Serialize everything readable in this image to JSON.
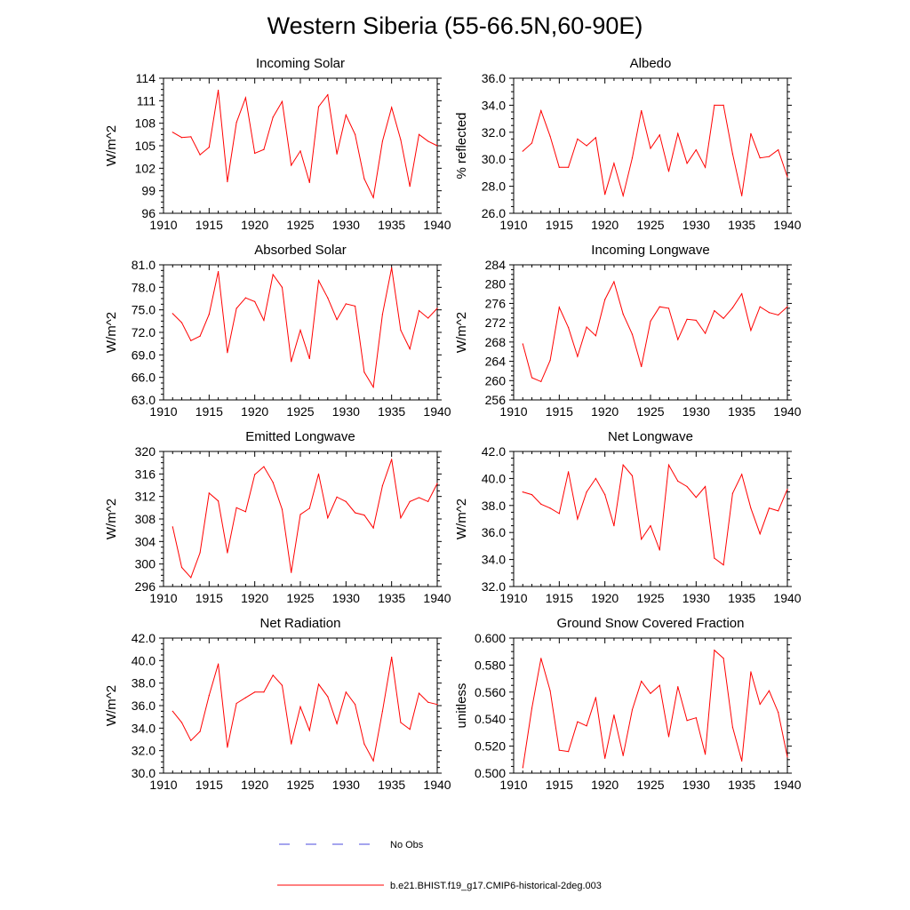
{
  "figure": {
    "title": "Western Siberia (55-66.5N,60-90E)"
  },
  "colors": {
    "model": "#ff0000",
    "obs": "#4a4adc",
    "axis": "#000000"
  },
  "legend": {
    "obs_label": "No Obs",
    "model_label": "b.e21.BHIST.f19_g17.CMIP6-historical-2deg.003"
  },
  "chart_data": [
    {
      "type": "line",
      "title": "Incoming Solar",
      "xlabel": "",
      "ylabel": "W/m^2",
      "xlim": [
        1910,
        1940
      ],
      "ylim": [
        96,
        114
      ],
      "xticks": [
        "1910",
        "1915",
        "1920",
        "1925",
        "1930",
        "1935",
        "1940"
      ],
      "yticks": [
        "96",
        "99",
        "102",
        "105",
        "108",
        "111",
        "114"
      ],
      "series": [
        {
          "name": "b.e21.BHIST.f19_g17.CMIP6-historical-2deg.003",
          "x": [
            1911,
            1912,
            1913,
            1914,
            1915,
            1916,
            1917,
            1918,
            1919,
            1920,
            1921,
            1922,
            1923,
            1924,
            1925,
            1926,
            1927,
            1928,
            1929,
            1930,
            1931,
            1932,
            1933,
            1934,
            1935,
            1936,
            1937,
            1938,
            1939,
            1940
          ],
          "values": [
            106.8,
            106.1,
            106.2,
            103.8,
            104.8,
            112.4,
            100.2,
            108.1,
            111.4,
            104.0,
            104.5,
            108.8,
            110.9,
            102.4,
            104.3,
            100.1,
            110.2,
            111.8,
            103.9,
            109.1,
            106.5,
            100.6,
            98.1,
            105.6,
            110.1,
            105.8,
            99.6,
            106.5,
            105.6,
            105.0
          ]
        }
      ]
    },
    {
      "type": "line",
      "title": "Albedo",
      "xlabel": "",
      "ylabel": "% reflected",
      "xlim": [
        1910,
        1940
      ],
      "ylim": [
        26,
        36
      ],
      "xticks": [
        "1910",
        "1915",
        "1920",
        "1925",
        "1930",
        "1935",
        "1940"
      ],
      "yticks": [
        "26.0",
        "28.0",
        "30.0",
        "32.0",
        "34.0",
        "36.0"
      ],
      "series": [
        {
          "name": "b.e21.BHIST.f19_g17.CMIP6-historical-2deg.003",
          "x": [
            1911,
            1912,
            1913,
            1914,
            1915,
            1916,
            1917,
            1918,
            1919,
            1920,
            1921,
            1922,
            1923,
            1924,
            1925,
            1926,
            1927,
            1928,
            1929,
            1930,
            1931,
            1932,
            1933,
            1934,
            1935,
            1936,
            1937,
            1938,
            1939,
            1940
          ],
          "values": [
            30.6,
            31.2,
            33.6,
            31.7,
            29.4,
            29.4,
            31.5,
            31.0,
            31.6,
            27.4,
            29.7,
            27.3,
            30.1,
            33.6,
            30.8,
            31.8,
            29.1,
            31.9,
            29.7,
            30.7,
            29.4,
            34.0,
            34.0,
            30.4,
            27.3,
            31.9,
            30.1,
            30.2,
            30.7,
            28.7
          ]
        }
      ]
    },
    {
      "type": "line",
      "title": "Absorbed Solar",
      "xlabel": "",
      "ylabel": "W/m^2",
      "xlim": [
        1910,
        1940
      ],
      "ylim": [
        63,
        81
      ],
      "xticks": [
        "1910",
        "1915",
        "1920",
        "1925",
        "1930",
        "1935",
        "1940"
      ],
      "yticks": [
        "63.0",
        "66.0",
        "69.0",
        "72.0",
        "75.0",
        "78.0",
        "81.0"
      ],
      "series": [
        {
          "name": "b.e21.BHIST.f19_g17.CMIP6-historical-2deg.003",
          "x": [
            1911,
            1912,
            1913,
            1914,
            1915,
            1916,
            1917,
            1918,
            1919,
            1920,
            1921,
            1922,
            1923,
            1924,
            1925,
            1926,
            1927,
            1928,
            1929,
            1930,
            1931,
            1932,
            1933,
            1934,
            1935,
            1936,
            1937,
            1938,
            1939,
            1940
          ],
          "values": [
            74.5,
            73.3,
            70.9,
            71.5,
            74.4,
            80.1,
            69.3,
            75.2,
            76.6,
            76.1,
            73.6,
            79.7,
            78.0,
            68.1,
            72.3,
            68.5,
            78.9,
            76.6,
            73.7,
            75.8,
            75.5,
            66.7,
            64.7,
            74.4,
            80.6,
            72.3,
            69.8,
            74.9,
            73.9,
            75.2
          ]
        }
      ]
    },
    {
      "type": "line",
      "title": "Incoming Longwave",
      "xlabel": "",
      "ylabel": "W/m^2",
      "xlim": [
        1910,
        1940
      ],
      "ylim": [
        256,
        284
      ],
      "xticks": [
        "1910",
        "1915",
        "1920",
        "1925",
        "1930",
        "1935",
        "1940"
      ],
      "yticks": [
        "256",
        "260",
        "264",
        "268",
        "272",
        "276",
        "280",
        "284"
      ],
      "series": [
        {
          "name": "b.e21.BHIST.f19_g17.CMIP6-historical-2deg.003",
          "x": [
            1911,
            1912,
            1913,
            1914,
            1915,
            1916,
            1917,
            1918,
            1919,
            1920,
            1921,
            1922,
            1923,
            1924,
            1925,
            1926,
            1927,
            1928,
            1929,
            1930,
            1931,
            1932,
            1933,
            1934,
            1935,
            1936,
            1937,
            1938,
            1939,
            1940
          ],
          "values": [
            267.6,
            260.6,
            259.8,
            264.2,
            275.2,
            271.0,
            265.0,
            271.1,
            269.3,
            276.8,
            280.5,
            273.8,
            269.6,
            262.9,
            272.3,
            275.3,
            275.0,
            268.5,
            272.7,
            272.5,
            269.8,
            274.5,
            272.9,
            275.1,
            278.0,
            270.4,
            275.3,
            274.1,
            273.6,
            275.3
          ]
        }
      ]
    },
    {
      "type": "line",
      "title": "Emitted Longwave",
      "xlabel": "",
      "ylabel": "W/m^2",
      "xlim": [
        1910,
        1940
      ],
      "ylim": [
        296,
        320
      ],
      "xticks": [
        "1910",
        "1915",
        "1920",
        "1925",
        "1930",
        "1935",
        "1940"
      ],
      "yticks": [
        "296",
        "300",
        "304",
        "308",
        "312",
        "316",
        "320"
      ],
      "series": [
        {
          "name": "b.e21.BHIST.f19_g17.CMIP6-historical-2deg.003",
          "x": [
            1911,
            1912,
            1913,
            1914,
            1915,
            1916,
            1917,
            1918,
            1919,
            1920,
            1921,
            1922,
            1923,
            1924,
            1925,
            1926,
            1927,
            1928,
            1929,
            1930,
            1931,
            1932,
            1933,
            1934,
            1935,
            1936,
            1937,
            1938,
            1939,
            1940
          ],
          "values": [
            306.6,
            299.4,
            297.6,
            302.0,
            312.6,
            311.2,
            302.0,
            310.0,
            309.3,
            315.9,
            317.3,
            314.5,
            309.7,
            298.5,
            308.8,
            309.9,
            316.0,
            308.2,
            311.9,
            311.1,
            309.1,
            308.7,
            306.4,
            313.9,
            318.6,
            308.2,
            311.1,
            311.8,
            311.1,
            314.3
          ]
        }
      ]
    },
    {
      "type": "line",
      "title": "Net Longwave",
      "xlabel": "",
      "ylabel": "W/m^2",
      "xlim": [
        1910,
        1940
      ],
      "ylim": [
        32,
        42
      ],
      "xticks": [
        "1910",
        "1915",
        "1920",
        "1925",
        "1930",
        "1935",
        "1940"
      ],
      "yticks": [
        "32.0",
        "34.0",
        "36.0",
        "38.0",
        "40.0",
        "42.0"
      ],
      "series": [
        {
          "name": "b.e21.BHIST.f19_g17.CMIP6-historical-2deg.003",
          "x": [
            1911,
            1912,
            1913,
            1914,
            1915,
            1916,
            1917,
            1918,
            1919,
            1920,
            1921,
            1922,
            1923,
            1924,
            1925,
            1926,
            1927,
            1928,
            1929,
            1930,
            1931,
            1932,
            1933,
            1934,
            1935,
            1936,
            1937,
            1938,
            1939,
            1940
          ],
          "values": [
            39.0,
            38.8,
            38.1,
            37.8,
            37.4,
            40.5,
            37.0,
            39.0,
            40.0,
            38.8,
            36.5,
            41.0,
            40.2,
            35.5,
            36.5,
            34.7,
            41.0,
            39.8,
            39.4,
            38.6,
            39.4,
            34.1,
            33.6,
            38.9,
            40.3,
            37.8,
            35.9,
            37.8,
            37.6,
            39.2
          ]
        }
      ]
    },
    {
      "type": "line",
      "title": "Net Radiation",
      "xlabel": "",
      "ylabel": "W/m^2",
      "xlim": [
        1910,
        1940
      ],
      "ylim": [
        30,
        42
      ],
      "xticks": [
        "1910",
        "1915",
        "1920",
        "1925",
        "1930",
        "1935",
        "1940"
      ],
      "yticks": [
        "30.0",
        "32.0",
        "34.0",
        "36.0",
        "38.0",
        "40.0",
        "42.0"
      ],
      "series": [
        {
          "name": "b.e21.BHIST.f19_g17.CMIP6-historical-2deg.003",
          "x": [
            1911,
            1912,
            1913,
            1914,
            1915,
            1916,
            1917,
            1918,
            1919,
            1920,
            1921,
            1922,
            1923,
            1924,
            1925,
            1926,
            1927,
            1928,
            1929,
            1930,
            1931,
            1932,
            1933,
            1934,
            1935,
            1936,
            1937,
            1938,
            1939,
            1940
          ],
          "values": [
            35.5,
            34.5,
            32.9,
            33.7,
            36.9,
            39.7,
            32.3,
            36.2,
            36.7,
            37.2,
            37.2,
            38.7,
            37.8,
            32.6,
            35.9,
            33.8,
            37.9,
            36.8,
            34.4,
            37.2,
            36.1,
            32.6,
            31.1,
            35.5,
            40.3,
            34.5,
            33.9,
            37.1,
            36.3,
            36.1
          ]
        }
      ]
    },
    {
      "type": "line",
      "title": "Ground Snow Covered Fraction",
      "xlabel": "",
      "ylabel": "unitless",
      "xlim": [
        1910,
        1940
      ],
      "ylim": [
        0.5,
        0.6
      ],
      "xticks": [
        "1910",
        "1915",
        "1920",
        "1925",
        "1930",
        "1935",
        "1940"
      ],
      "yticks": [
        "0.500",
        "0.520",
        "0.540",
        "0.560",
        "0.580",
        "0.600"
      ],
      "series": [
        {
          "name": "b.e21.BHIST.f19_g17.CMIP6-historical-2deg.003",
          "x": [
            1911,
            1912,
            1913,
            1914,
            1915,
            1916,
            1917,
            1918,
            1919,
            1920,
            1921,
            1922,
            1923,
            1924,
            1925,
            1926,
            1927,
            1928,
            1929,
            1930,
            1931,
            1932,
            1933,
            1934,
            1935,
            1936,
            1937,
            1938,
            1939,
            1940
          ],
          "values": [
            0.504,
            0.548,
            0.585,
            0.561,
            0.517,
            0.516,
            0.538,
            0.535,
            0.556,
            0.511,
            0.543,
            0.513,
            0.547,
            0.568,
            0.559,
            0.565,
            0.527,
            0.564,
            0.539,
            0.541,
            0.514,
            0.591,
            0.585,
            0.534,
            0.509,
            0.575,
            0.551,
            0.561,
            0.545,
            0.512
          ]
        }
      ]
    }
  ]
}
